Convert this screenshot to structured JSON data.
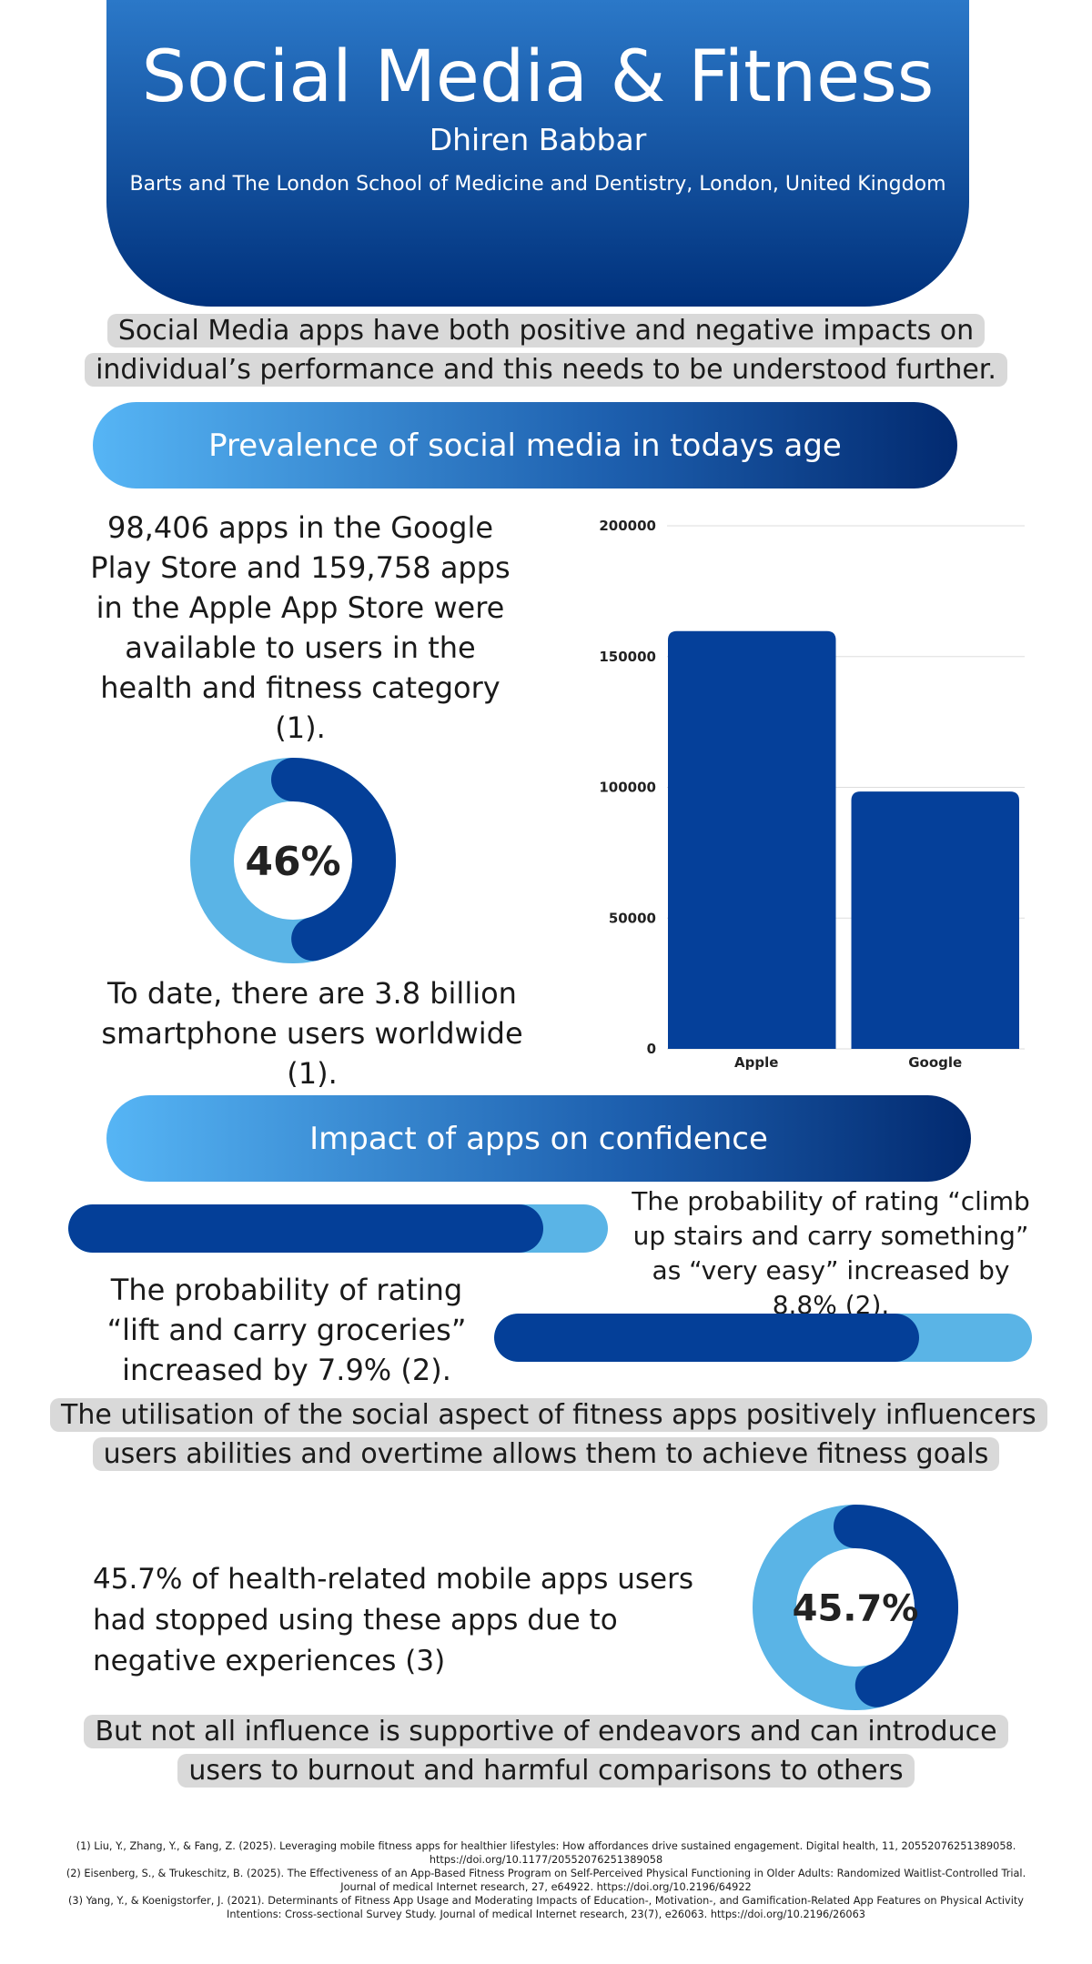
{
  "header": {
    "title": "Social Media & Fitness",
    "author": "Dhiren Babbar",
    "affiliation": "Barts and The London School of Medicine and Dentistry, London, United Kingdom"
  },
  "intro": "Social Media apps have both positive and negative impacts on individual’s performance and this needs to be understood further.",
  "sections": [
    {
      "heading": "Prevalence of social media in todays age"
    },
    {
      "heading": "Impact of apps on confidence"
    }
  ],
  "prevalence": {
    "apps_text": "98,406 apps in the Google Play Store and 159,758 apps in the Apple App Store were available to users in the health and fitness category (1).",
    "donut": {
      "value": 46,
      "label": "46%"
    },
    "smartphone_text": "To date, there are 3.8 billion smartphone users worldwide (1)."
  },
  "chart_data": {
    "type": "bar",
    "categories": [
      "Apple",
      "Google"
    ],
    "values": [
      159758,
      98406
    ],
    "color": "#05409a",
    "ylim": [
      0,
      200000
    ],
    "yticks": [
      0,
      50000,
      100000,
      150000,
      200000
    ],
    "grid": true
  },
  "confidence": {
    "stairs_text": "The probability of rating “climb up stairs and carry something” as “very easy” increased by 8.8% (2).",
    "groceries_text": "The probability of rating “lift and carry groceries” increased by 7.9% (2).",
    "social_text": "The utilisation of the social aspect of fitness apps positively influencers users abilities and overtime allows them to achieve fitness goals",
    "stopped_text": "45.7% of health-related mobile apps users had stopped using these apps due to negative experiences (3)",
    "donut": {
      "value": 45.7,
      "label": "45.7%"
    },
    "burnout_text": "But not all influence is supportive of endeavors and can introduce users to burnout and harmful comparisons to others"
  },
  "references": [
    "(1) Liu, Y., Zhang, Y., & Fang, Z. (2025). Leveraging mobile fitness apps for healthier lifestyles: How affordances drive sustained engagement. Digital health, 11, 20552076251389058. https://doi.org/10.1177/20552076251389058",
    "(2) Eisenberg, S., & Trukeschitz, B. (2025). The Effectiveness of an App-Based Fitness Program on Self-Perceived Physical Functioning in Older Adults: Randomized Waitlist-Controlled Trial. Journal of medical Internet research, 27, e64922. https://doi.org/10.2196/64922",
    "(3) Yang, Y., & Koenigstorfer, J. (2021). Determinants of Fitness App Usage and Moderating Impacts of Education-, Motivation-, and Gamification-Related App Features on Physical Activity Intentions: Cross-sectional Survey Study. Journal of medical Internet research, 23(7), e26063. https://doi.org/10.2196/26063"
  ]
}
